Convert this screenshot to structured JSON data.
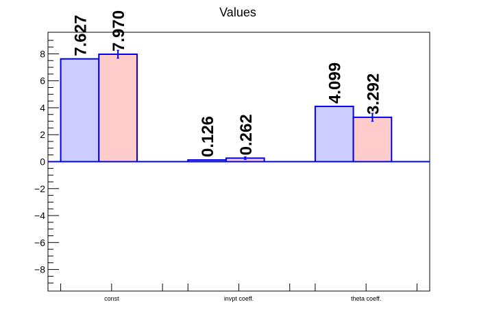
{
  "chart_data": {
    "type": "bar",
    "title": "Values",
    "xlabel": "",
    "ylabel": "",
    "categories": [
      "const",
      "invpt coeff.",
      "theta coeff."
    ],
    "series": [
      {
        "values": [
          7.627,
          0.126,
          4.099
        ],
        "errors": [
          0,
          0,
          0
        ]
      },
      {
        "values": [
          7.97,
          0.262,
          3.292
        ],
        "errors": [
          0.3,
          0.1,
          0.3
        ]
      }
    ],
    "data_labels": [
      [
        "7.627",
        "0.126",
        "4.099"
      ],
      [
        "7.970",
        "0.262",
        "3.292"
      ]
    ],
    "ylim": [
      -9.6,
      9.6
    ],
    "yticks": [
      -8,
      -6,
      -4,
      -2,
      0,
      2,
      4,
      6,
      8
    ],
    "ytick_labels": [
      "−8",
      "−6",
      "−4",
      "−2",
      "0",
      "2",
      "4",
      "6",
      "8"
    ],
    "grid": false,
    "legend": "none",
    "colors": {
      "series_fill": [
        "#ccccff",
        "#ffcccc"
      ],
      "bar_edge": "#0000ee",
      "axis": "#000000"
    }
  }
}
